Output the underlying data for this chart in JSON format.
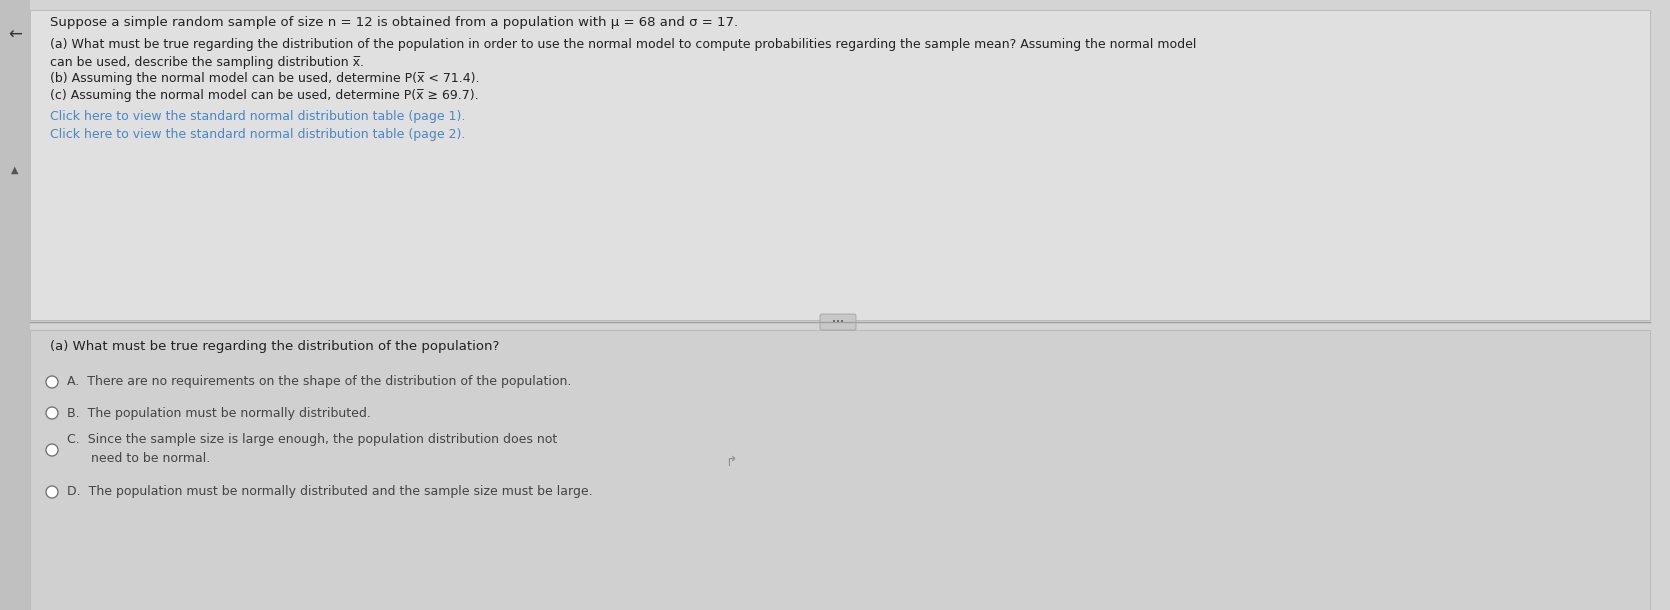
{
  "bg_color": "#d4d4d4",
  "top_panel_bg": "#e0e0e0",
  "bottom_panel_bg": "#d0d0d0",
  "title_text": "Suppose a simple random sample of size n = 12 is obtained from a population with μ = 68 and σ = 17.",
  "part_a_question": "(a) What must be true regarding the distribution of the population in order to use the normal model to compute probabilities regarding the sample mean? Assuming the normal model",
  "part_a_cont": "can be used, describe the sampling distribution x̅.",
  "part_b": "(b) Assuming the normal model can be used, determine P(x̅ < 71.4).",
  "part_c": "(c) Assuming the normal model can be used, determine P(x̅ ≥ 69.7).",
  "link1": "Click here to view the standard normal distribution table (page 1).",
  "link2": "Click here to view the standard normal distribution table (page 2).",
  "bottom_question": "(a) What must be true regarding the distribution of the population?",
  "option_A": "A.  There are no requirements on the shape of the distribution of the population.",
  "option_B": "B.  The population must be normally distributed.",
  "option_C_line1": "C.  Since the sample size is large enough, the population distribution does not",
  "option_C_line2": "      need to be normal.",
  "option_D": "D.  The population must be normally distributed and the sample size must be large.",
  "link_color": "#4a86c8",
  "dark_text": "#222222",
  "option_text_color": "#444444"
}
